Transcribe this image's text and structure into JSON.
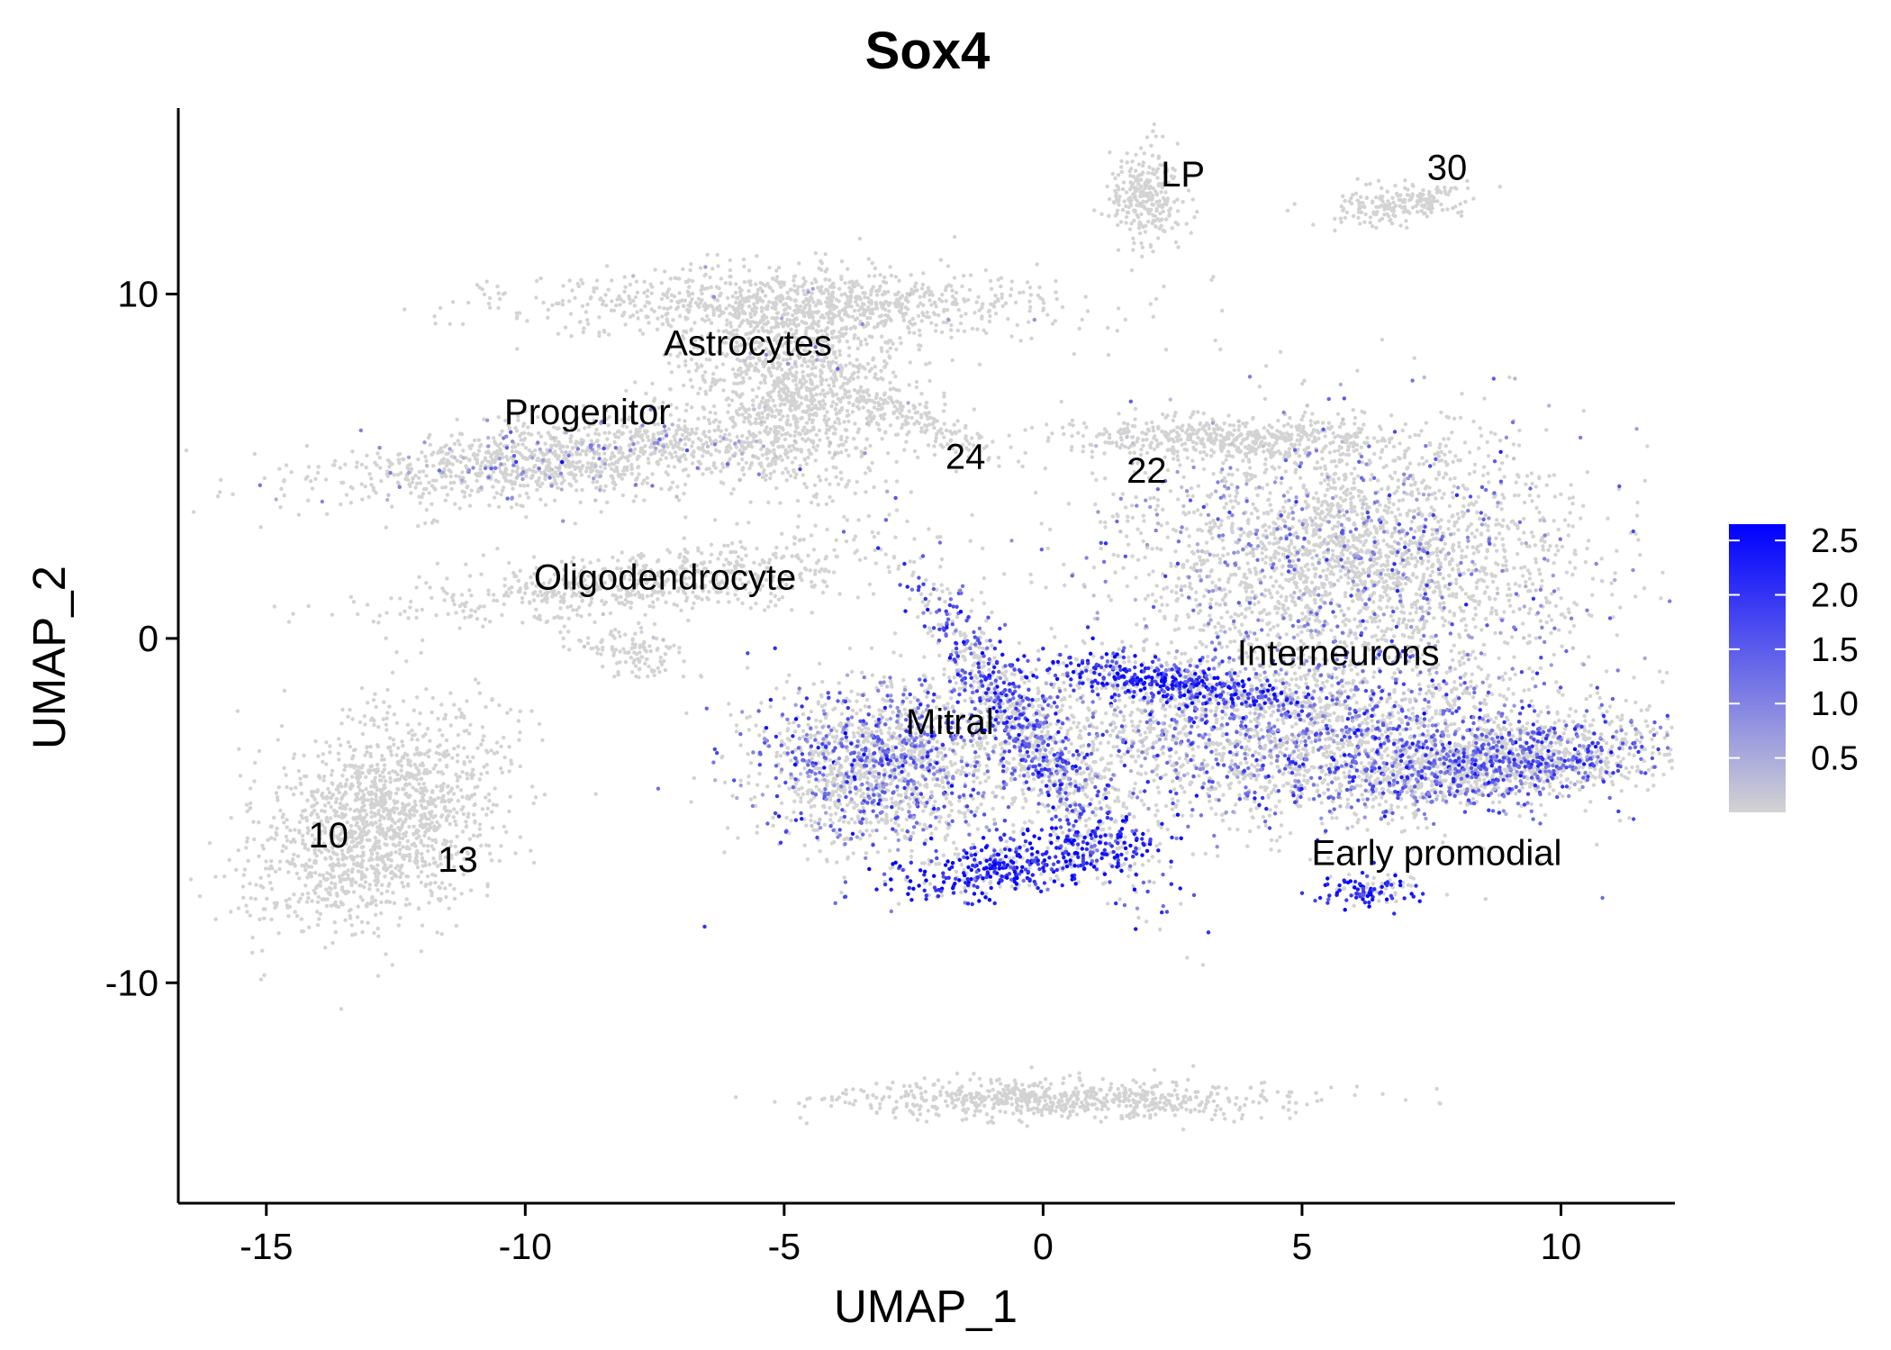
{
  "chart_data": {
    "type": "scatter",
    "title": "Sox4",
    "xlabel": "UMAP_1",
    "ylabel": "UMAP_2",
    "xlim": [
      -16.7,
      12.2
    ],
    "ylim": [
      -16.4,
      15.4
    ],
    "xticks": [
      {
        "value": -15,
        "label": "-15"
      },
      {
        "value": -10,
        "label": "-10"
      },
      {
        "value": -5,
        "label": "-5"
      },
      {
        "value": 0,
        "label": "0"
      },
      {
        "value": 5,
        "label": "5"
      },
      {
        "value": 10,
        "label": "10"
      }
    ],
    "yticks": [
      {
        "value": 10,
        "label": "10"
      },
      {
        "value": 0,
        "label": "0"
      },
      {
        "value": -10,
        "label": "-10"
      }
    ],
    "grid": false,
    "colors": {
      "low": "#d3d3d3",
      "high": "#0000ff"
    },
    "colorbar": {
      "min": 0.0,
      "max": 2.65,
      "position": "right",
      "ticks": [
        {
          "value": 0.5,
          "label": "0.5"
        },
        {
          "value": 1.0,
          "label": "1.0"
        },
        {
          "value": 1.5,
          "label": "1.5"
        },
        {
          "value": 2.0,
          "label": "2.0"
        },
        {
          "value": 2.5,
          "label": "2.5"
        }
      ]
    },
    "cluster_labels": [
      {
        "text": "LP",
        "x": 2.7,
        "y": 13.4
      },
      {
        "text": "30",
        "x": 7.8,
        "y": 13.6
      },
      {
        "text": "Astrocytes",
        "x": -5.7,
        "y": 8.5
      },
      {
        "text": "Progenitor",
        "x": -8.8,
        "y": 6.5
      },
      {
        "text": "24",
        "x": -1.5,
        "y": 5.2
      },
      {
        "text": "22",
        "x": 2.0,
        "y": 4.8
      },
      {
        "text": "Oligodendrocyte",
        "x": -7.3,
        "y": 1.7
      },
      {
        "text": "Interneurons",
        "x": 5.7,
        "y": -0.5
      },
      {
        "text": "Mitral",
        "x": -1.8,
        "y": -2.5
      },
      {
        "text": "10",
        "x": -13.8,
        "y": -5.8
      },
      {
        "text": "13",
        "x": -11.3,
        "y": -6.5
      },
      {
        "text": "Early promodial",
        "x": 7.6,
        "y": -6.3
      }
    ],
    "clusters": [
      {
        "id": "LP",
        "n": 260,
        "cx": 2.0,
        "cy": 12.9,
        "sx": 0.35,
        "sy": 0.7,
        "rot": 0,
        "expr": 0.0,
        "pexpr": 0.0
      },
      {
        "id": "30",
        "n": 200,
        "cx": 6.9,
        "cy": 12.6,
        "sx": 0.7,
        "sy": 0.25,
        "rot": 10,
        "expr": 0.0,
        "pexpr": 0.0
      },
      {
        "id": "Astrocytes-top",
        "n": 900,
        "cx": -4.8,
        "cy": 9.7,
        "sx": 2.6,
        "sy": 0.5,
        "rot": 0,
        "expr": 0.2,
        "pexpr": 0.01
      },
      {
        "id": "Astrocytes-body",
        "n": 1200,
        "cx": -4.8,
        "cy": 7.2,
        "sx": 1.1,
        "sy": 1.5,
        "rot": 0,
        "expr": 0.3,
        "pexpr": 0.02
      },
      {
        "id": "Progenitor",
        "n": 1100,
        "cx": -9.2,
        "cy": 5.2,
        "sx": 2.2,
        "sy": 0.55,
        "rot": 8,
        "expr": 0.8,
        "pexpr": 0.12
      },
      {
        "id": "24",
        "n": 160,
        "cx": -2.4,
        "cy": 6.3,
        "sx": 1.1,
        "sy": 0.3,
        "rot": -35,
        "expr": 0.0,
        "pexpr": 0.0
      },
      {
        "id": "22",
        "n": 500,
        "cx": 3.6,
        "cy": 5.8,
        "sx": 1.6,
        "sy": 0.3,
        "rot": 0,
        "expr": 0.1,
        "pexpr": 0.01
      },
      {
        "id": "Oligodendrocyte",
        "n": 650,
        "cx": -7.8,
        "cy": 1.6,
        "sx": 2.3,
        "sy": 0.5,
        "rot": 8,
        "expr": 0.0,
        "pexpr": 0.0
      },
      {
        "id": "Oligo-tail",
        "n": 120,
        "cx": -8.0,
        "cy": -0.4,
        "sx": 0.6,
        "sy": 0.3,
        "rot": -25,
        "expr": 0.3,
        "pexpr": 0.05
      },
      {
        "id": "Interneurons-upper",
        "n": 2600,
        "cx": 6.0,
        "cy": 2.5,
        "sx": 2.2,
        "sy": 1.8,
        "rot": 0,
        "expr": 1.0,
        "pexpr": 0.18
      },
      {
        "id": "Interneurons-lower",
        "n": 2600,
        "cx": 4.6,
        "cy": -2.8,
        "sx": 3.0,
        "sy": 1.3,
        "rot": 0,
        "expr": 1.3,
        "pexpr": 0.32
      },
      {
        "id": "Interneurons-band",
        "n": 500,
        "cx": 2.4,
        "cy": -1.3,
        "sx": 1.3,
        "sy": 0.3,
        "rot": -12,
        "expr": 2.2,
        "pexpr": 0.7
      },
      {
        "id": "Right-arm",
        "n": 1300,
        "cx": 8.9,
        "cy": -3.6,
        "sx": 1.7,
        "sy": 0.55,
        "rot": 8,
        "expr": 1.5,
        "pexpr": 0.38
      },
      {
        "id": "Mitral",
        "n": 1500,
        "cx": -3.2,
        "cy": -3.7,
        "sx": 1.2,
        "sy": 1.2,
        "rot": 0,
        "expr": 1.3,
        "pexpr": 0.35
      },
      {
        "id": "Mitral-diagonal",
        "n": 900,
        "cx": -0.4,
        "cy": -2.6,
        "sx": 2.6,
        "sy": 0.4,
        "rot": -65,
        "expr": 1.7,
        "pexpr": 0.45
      },
      {
        "id": "Mitral-hook",
        "n": 500,
        "cx": -0.4,
        "cy": -6.5,
        "sx": 1.4,
        "sy": 0.4,
        "rot": 15,
        "expr": 2.3,
        "pexpr": 0.72
      },
      {
        "id": "10-13",
        "n": 1500,
        "cx": -12.8,
        "cy": -5.4,
        "sx": 1.0,
        "sy": 1.6,
        "rot": -25,
        "expr": 0.0,
        "pexpr": 0.0
      },
      {
        "id": "Early promodial",
        "n": 120,
        "cx": 6.3,
        "cy": -7.3,
        "sx": 0.5,
        "sy": 0.25,
        "rot": 0,
        "expr": 2.2,
        "pexpr": 0.6
      },
      {
        "id": "Bottom",
        "n": 700,
        "cx": 0.4,
        "cy": -13.4,
        "sx": 2.2,
        "sy": 0.28,
        "rot": 0,
        "expr": 0.0,
        "pexpr": 0.0
      }
    ]
  }
}
